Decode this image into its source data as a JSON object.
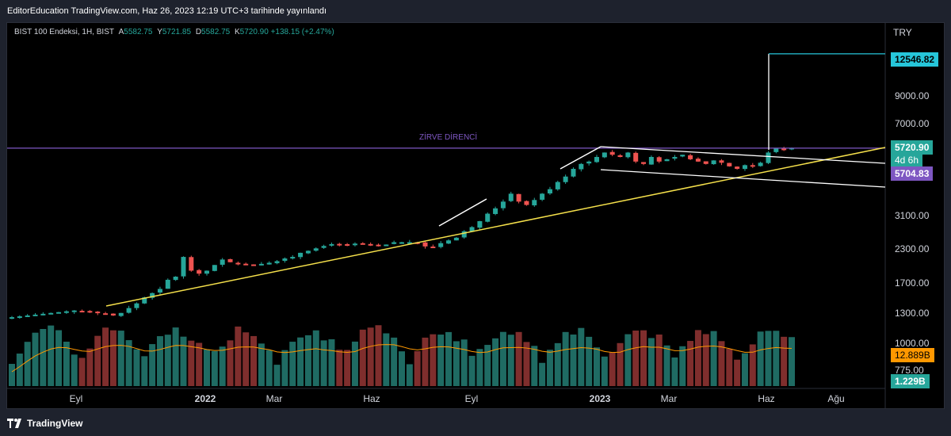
{
  "header": {
    "published_text": "EditorEducation TradingView.com, Haz 26, 2023 12:19 UTC+3 tarihinde yayınlandı"
  },
  "legend": {
    "symbol": "BIST 100 Endeksi, 1H, BIST",
    "open_label": "A",
    "open": "5582.75",
    "high_label": "Y",
    "high": "5721.85",
    "low_label": "D",
    "low": "5582.75",
    "close_label": "K",
    "close": "5720.90",
    "change": "+138.15 (+2.47%)"
  },
  "price_axis": {
    "currency": "TRY",
    "labels": [
      "9000.00",
      "7000.00",
      "3100.00",
      "2300.00",
      "1700.00",
      "1300.00",
      "1000.00",
      "775.00"
    ]
  },
  "time_axis": {
    "labels": [
      "Eyl",
      "2022",
      "Mar",
      "Haz",
      "Eyl",
      "2023",
      "Mar",
      "Haz",
      "Ağu"
    ]
  },
  "annotations": {
    "resistance_label": "ZİRVE DİRENCİ"
  },
  "tags": {
    "target": "12546.82",
    "last_price": "5720.90",
    "countdown": "4d 6h",
    "resistance": "5704.83",
    "volume_ma": "12.889B",
    "volume": "1.229B"
  },
  "colors": {
    "up": "#26a69a",
    "down": "#ef5350",
    "vol_up": "#1f6b63",
    "vol_down": "#7f2e2d",
    "resistance": "#7e57c2",
    "trend": "#f5e04b",
    "target": "#26c6da",
    "ma": "#ff9800"
  },
  "footer": {
    "brand": "TradingView"
  },
  "chart_data": {
    "type": "candlestick",
    "y_scale": "log",
    "close_series": [
      1390,
      1400,
      1410,
      1420,
      1430,
      1440,
      1450,
      1460,
      1470,
      1460,
      1450,
      1440,
      1430,
      1410,
      1440,
      1500,
      1560,
      1640,
      1700,
      1760,
      1900,
      1950,
      2300,
      2050,
      2000,
      2050,
      2150,
      2250,
      2200,
      2180,
      2160,
      2150,
      2170,
      2190,
      2220,
      2270,
      2300,
      2380,
      2420,
      2470,
      2520,
      2560,
      2560,
      2550,
      2570,
      2560,
      2540,
      2530,
      2550,
      2600,
      2600,
      2600,
      2590,
      2510,
      2500,
      2580,
      2640,
      2700,
      2850,
      2950,
      3100,
      3300,
      3450,
      3650,
      3900,
      3650,
      3550,
      3700,
      3900,
      4050,
      4300,
      4500,
      4800,
      5000,
      5100,
      5300,
      5500,
      5400,
      5300,
      5500,
      5100,
      5000,
      5300,
      5100,
      5200,
      5300,
      5400,
      5200,
      5100,
      5000,
      5150,
      5050,
      4900,
      4800,
      4950,
      4900,
      5050,
      5500,
      5700,
      5650,
      5720
    ],
    "resistance": 5704.83,
    "target": 12546.82,
    "last": 5720.9
  }
}
